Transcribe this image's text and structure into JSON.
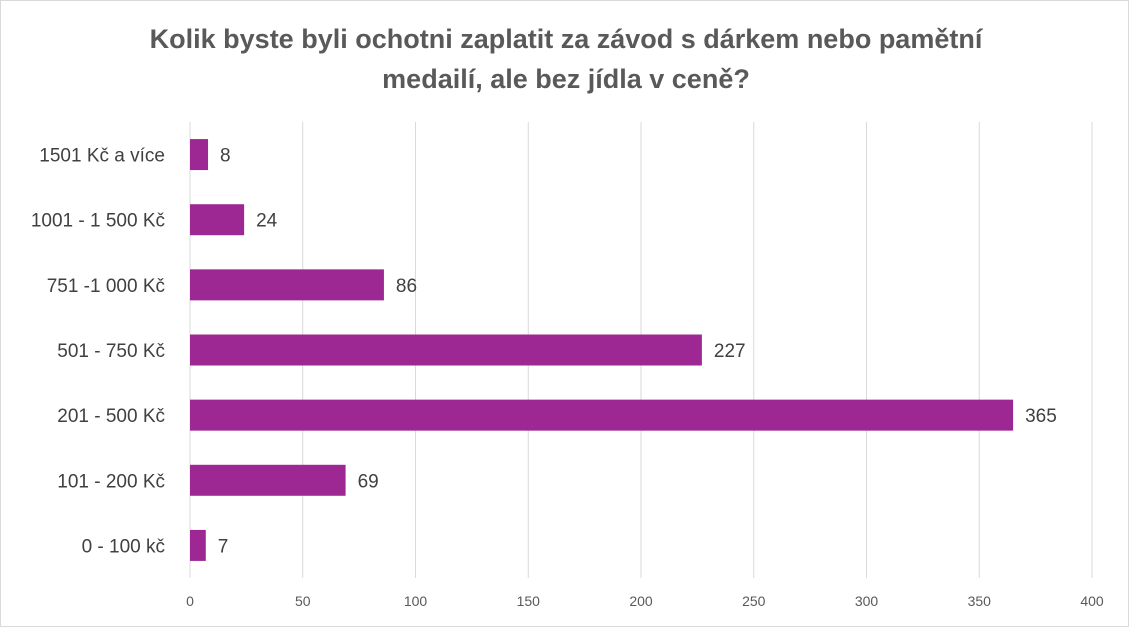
{
  "chart_data": {
    "type": "bar",
    "orientation": "horizontal",
    "title": "Kolik byste byli ochotni zaplatit za závod s dárkem nebo pamětní medailí, ale bez jídla v ceně?",
    "title_lines": [
      "Kolik byste byli ochotni zaplatit za závod s dárkem nebo pamětní",
      "medailí, ale bez jídla v ceně?"
    ],
    "categories": [
      "1501 Kč a více",
      "1001 - 1 500 Kč",
      "751 -1 000 Kč",
      "501 - 750 Kč",
      "201 - 500 Kč",
      "101 - 200 Kč",
      "0 - 100 kč"
    ],
    "values": [
      8,
      24,
      86,
      227,
      365,
      69,
      7
    ],
    "xlim": [
      0,
      400
    ],
    "xticks": [
      0,
      50,
      100,
      150,
      200,
      250,
      300,
      350,
      400
    ],
    "grid": "vertical",
    "legend": "none",
    "bar_color": "#9e2893",
    "grid_color": "#d9d9d9"
  }
}
